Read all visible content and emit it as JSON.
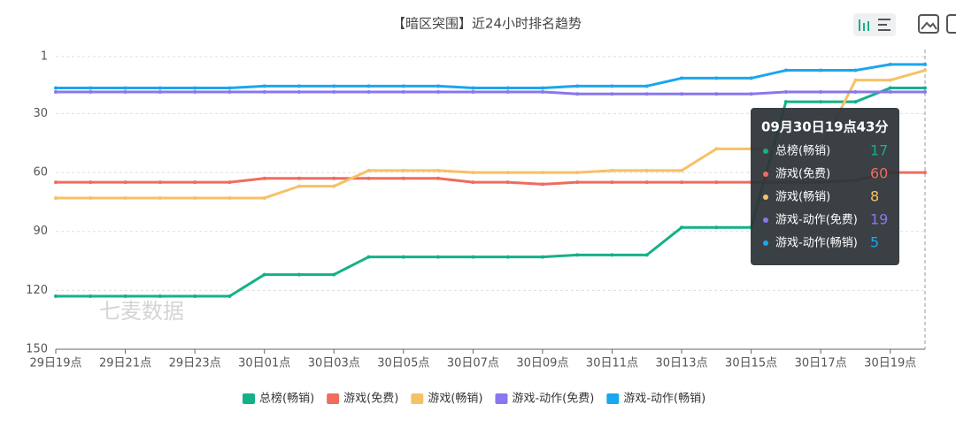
{
  "chart_data": {
    "type": "line",
    "title": "【暗区突围】近24小时排名趋势",
    "categories": [
      "29日19点",
      null,
      "29日21点",
      null,
      "29日23点",
      null,
      "30日01点",
      null,
      "30日03点",
      null,
      "30日05点",
      null,
      "30日07点",
      null,
      "30日09点",
      null,
      "30日11点",
      null,
      "30日13点",
      null,
      "30日15点",
      null,
      "30日17点",
      null,
      "30日19点",
      null
    ],
    "series": [
      {
        "name": "总榜(畅销)",
        "color": "#14b189",
        "values": [
          123,
          123,
          123,
          123,
          123,
          123,
          112,
          112,
          112,
          103,
          103,
          103,
          103,
          103,
          103,
          102,
          102,
          102,
          88,
          88,
          88,
          24,
          24,
          24,
          17,
          17
        ]
      },
      {
        "name": "游戏(免费)",
        "color": "#ef6c5f",
        "values": [
          65,
          65,
          65,
          65,
          65,
          65,
          63,
          63,
          63,
          63,
          63,
          63,
          65,
          65,
          66,
          65,
          65,
          65,
          65,
          65,
          65,
          65,
          65,
          64,
          60,
          60
        ]
      },
      {
        "name": "游戏(畅销)",
        "color": "#f6c165",
        "values": [
          73,
          73,
          73,
          73,
          73,
          73,
          73,
          67,
          67,
          59,
          59,
          59,
          60,
          60,
          60,
          60,
          59,
          59,
          59,
          48,
          48,
          48,
          48,
          13,
          13,
          8
        ]
      },
      {
        "name": "游戏-动作(免费)",
        "color": "#8877ee",
        "values": [
          19,
          19,
          19,
          19,
          19,
          19,
          19,
          19,
          19,
          19,
          19,
          19,
          19,
          19,
          19,
          20,
          20,
          20,
          20,
          20,
          20,
          19,
          19,
          19,
          19,
          19
        ]
      },
      {
        "name": "游戏-动作(畅销)",
        "color": "#1ba6ee",
        "values": [
          17,
          17,
          17,
          17,
          17,
          17,
          16,
          16,
          16,
          16,
          16,
          16,
          17,
          17,
          17,
          16,
          16,
          16,
          12,
          12,
          12,
          8,
          8,
          8,
          5,
          5
        ]
      }
    ],
    "ylim": [
      1,
      150
    ],
    "y_inverted": true,
    "yticks": [
      1,
      30,
      60,
      90,
      120,
      150
    ],
    "grid": true,
    "watermark": "七麦数据",
    "tooltip": {
      "title": "09月30日19点43分",
      "index": 25
    }
  }
}
